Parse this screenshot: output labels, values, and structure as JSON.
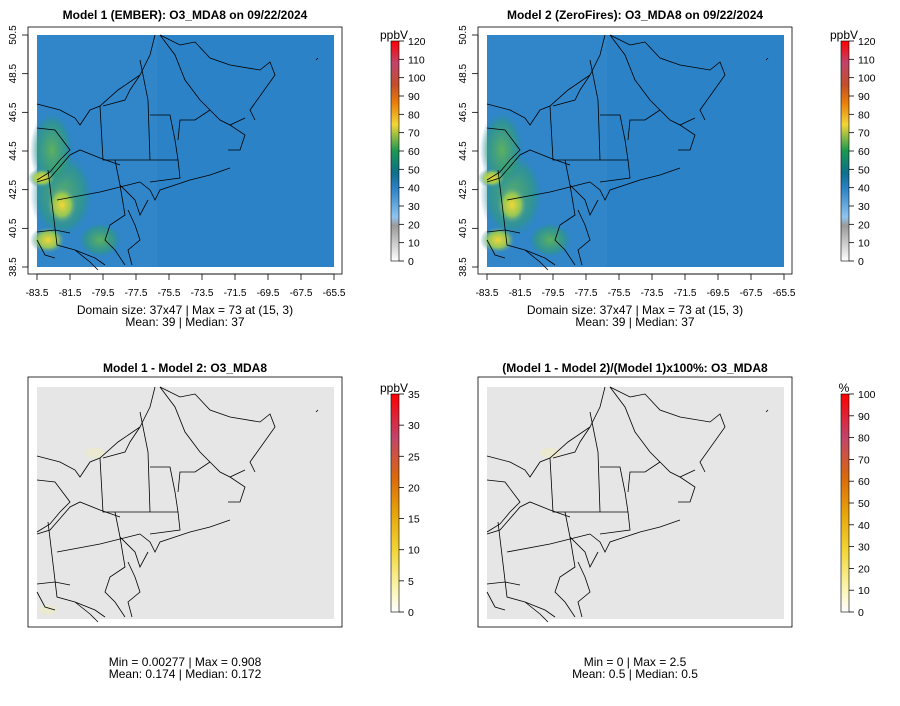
{
  "chart_data": [
    {
      "type": "heatmap",
      "title": "Model 1 (EMBER): O3_MDA8 on 09/22/2024",
      "x_ticks": [
        "-83.5",
        "-81.5",
        "-79.5",
        "-77.5",
        "-75.5",
        "-73.5",
        "-71.5",
        "-69.5",
        "-67.5",
        "-65.5"
      ],
      "y_ticks": [
        "38.5",
        "40.5",
        "42.5",
        "44.5",
        "46.5",
        "48.5",
        "50.5"
      ],
      "xlim": [
        -84.1,
        -65.1
      ],
      "ylim": [
        38.1,
        50.9
      ],
      "colorbar": {
        "unit": "ppbV",
        "ticks": [
          "0",
          "10",
          "20",
          "30",
          "40",
          "50",
          "60",
          "70",
          "80",
          "90",
          "100",
          "110",
          "120"
        ]
      },
      "stats_line1": "Domain size: 37x47 | Max = 73 at (15, 3)",
      "stats_line2": "Mean: 39 |  Median: 37",
      "domain_size": "37x47",
      "max": 73,
      "max_location": [
        15,
        3
      ],
      "mean": 39,
      "median": 37
    },
    {
      "type": "heatmap",
      "title": "Model 2 (ZeroFires): O3_MDA8 on 09/22/2024",
      "x_ticks": [
        "-83.5",
        "-81.5",
        "-79.5",
        "-77.5",
        "-75.5",
        "-73.5",
        "-71.5",
        "-69.5",
        "-67.5",
        "-65.5"
      ],
      "y_ticks": [
        "38.5",
        "40.5",
        "42.5",
        "44.5",
        "46.5",
        "48.5",
        "50.5"
      ],
      "xlim": [
        -84.1,
        -65.1
      ],
      "ylim": [
        38.1,
        50.9
      ],
      "colorbar": {
        "unit": "ppbV",
        "ticks": [
          "0",
          "10",
          "20",
          "30",
          "40",
          "50",
          "60",
          "70",
          "80",
          "90",
          "100",
          "110",
          "120"
        ]
      },
      "stats_line1": "Domain size: 37x47 | Max = 73 at (15, 3)",
      "stats_line2": "Mean: 39 |  Median: 37",
      "domain_size": "37x47",
      "max": 73,
      "max_location": [
        15,
        3
      ],
      "mean": 39,
      "median": 37
    },
    {
      "type": "heatmap",
      "title": "Model 1 - Model 2: O3_MDA8",
      "colorbar": {
        "unit": "ppbV",
        "ticks": [
          "0",
          "5",
          "10",
          "15",
          "20",
          "25",
          "30",
          "35"
        ]
      },
      "stats_line1": "Min = 0.00277 | Max = 0.908",
      "stats_line2": "Mean: 0.174 |  Median: 0.172",
      "min": 0.00277,
      "max": 0.908,
      "mean": 0.174,
      "median": 0.172
    },
    {
      "type": "heatmap",
      "title": "(Model 1 - Model 2)/(Model 1)x100%: O3_MDA8",
      "colorbar": {
        "unit": "%",
        "ticks": [
          "0",
          "10",
          "20",
          "30",
          "40",
          "50",
          "60",
          "70",
          "80",
          "90",
          "100"
        ]
      },
      "stats_line1": "Min = 0 | Max = 2.5",
      "stats_line2": "Mean: 0.5 |  Median: 0.5",
      "min": 0,
      "max": 2.5,
      "mean": 0.5,
      "median": 0.5
    }
  ],
  "colors": {
    "ozone_field": "#2b82c6",
    "difference_field": "#e6e6e6",
    "colorbar_ozone": [
      "#ffffff",
      "#9a9a9a",
      "#6fb3e8",
      "#2b82c6",
      "#0e6f8d",
      "#1a9850",
      "#f2d638",
      "#e87d0a",
      "#c0446a",
      "#ff0000"
    ],
    "colorbar_difference": [
      "#ffffff",
      "#fbf3a8",
      "#f2d638",
      "#e8a50a",
      "#d9680d",
      "#c0446a",
      "#ff0000"
    ]
  }
}
